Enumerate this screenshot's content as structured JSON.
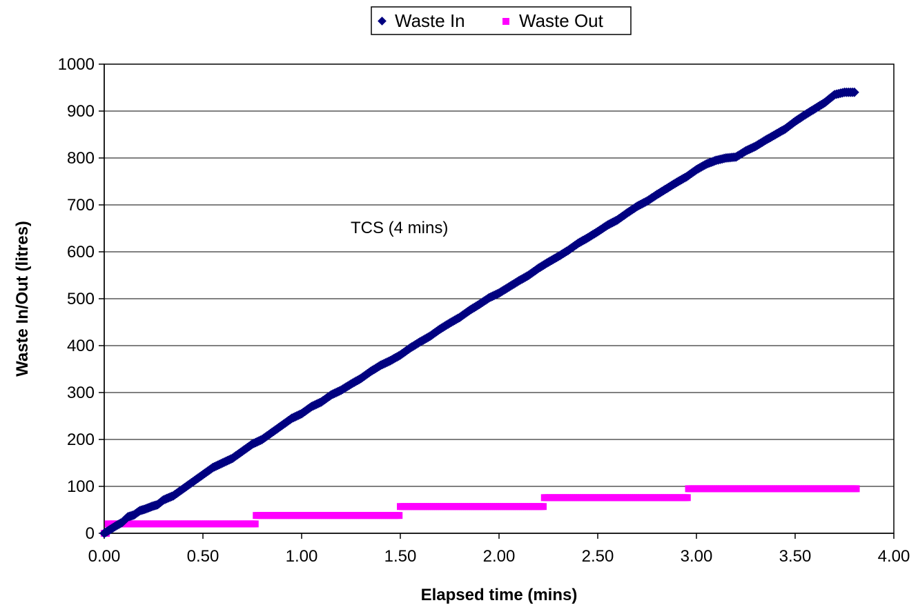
{
  "chart_data": {
    "type": "scatter",
    "title": "",
    "xlabel": "Elapsed time (mins)",
    "ylabel": "Waste In/Out (litres)",
    "xlim": [
      0,
      4
    ],
    "ylim": [
      0,
      1000
    ],
    "x_ticks": [
      "0.00",
      "0.50",
      "1.00",
      "1.50",
      "2.00",
      "2.50",
      "3.00",
      "3.50",
      "4.00"
    ],
    "y_ticks": [
      "0",
      "100",
      "200",
      "300",
      "400",
      "500",
      "600",
      "700",
      "800",
      "900",
      "1000"
    ],
    "grid": "horizontal",
    "legend_position": "top-center",
    "annotation": "TCS (4 mins)",
    "series": [
      {
        "name": "Waste In",
        "marker": "diamond",
        "color": "#000080",
        "points": [
          [
            0.0,
            0
          ],
          [
            0.03,
            8
          ],
          [
            0.06,
            16
          ],
          [
            0.09,
            23
          ],
          [
            0.12,
            35
          ],
          [
            0.15,
            39
          ],
          [
            0.18,
            48
          ],
          [
            0.21,
            52
          ],
          [
            0.24,
            57
          ],
          [
            0.27,
            61
          ],
          [
            0.3,
            71
          ],
          [
            0.35,
            80
          ],
          [
            0.4,
            95
          ],
          [
            0.45,
            110
          ],
          [
            0.5,
            125
          ],
          [
            0.55,
            140
          ],
          [
            0.6,
            150
          ],
          [
            0.65,
            160
          ],
          [
            0.7,
            175
          ],
          [
            0.75,
            190
          ],
          [
            0.8,
            200
          ],
          [
            0.85,
            215
          ],
          [
            0.9,
            230
          ],
          [
            0.95,
            245
          ],
          [
            1.0,
            255
          ],
          [
            1.05,
            270
          ],
          [
            1.1,
            280
          ],
          [
            1.15,
            295
          ],
          [
            1.2,
            305
          ],
          [
            1.25,
            318
          ],
          [
            1.3,
            330
          ],
          [
            1.35,
            345
          ],
          [
            1.4,
            358
          ],
          [
            1.45,
            368
          ],
          [
            1.5,
            380
          ],
          [
            1.55,
            395
          ],
          [
            1.6,
            408
          ],
          [
            1.65,
            420
          ],
          [
            1.7,
            435
          ],
          [
            1.75,
            448
          ],
          [
            1.8,
            460
          ],
          [
            1.85,
            475
          ],
          [
            1.9,
            488
          ],
          [
            1.95,
            502
          ],
          [
            2.0,
            512
          ],
          [
            2.05,
            525
          ],
          [
            2.1,
            538
          ],
          [
            2.15,
            550
          ],
          [
            2.2,
            565
          ],
          [
            2.25,
            578
          ],
          [
            2.3,
            590
          ],
          [
            2.35,
            603
          ],
          [
            2.4,
            618
          ],
          [
            2.45,
            630
          ],
          [
            2.5,
            643
          ],
          [
            2.55,
            657
          ],
          [
            2.6,
            668
          ],
          [
            2.65,
            683
          ],
          [
            2.7,
            697
          ],
          [
            2.75,
            708
          ],
          [
            2.8,
            722
          ],
          [
            2.85,
            735
          ],
          [
            2.9,
            748
          ],
          [
            2.95,
            760
          ],
          [
            3.0,
            775
          ],
          [
            3.05,
            787
          ],
          [
            3.1,
            795
          ],
          [
            3.15,
            800
          ],
          [
            3.2,
            802
          ],
          [
            3.25,
            815
          ],
          [
            3.3,
            825
          ],
          [
            3.35,
            838
          ],
          [
            3.4,
            850
          ],
          [
            3.45,
            862
          ],
          [
            3.5,
            878
          ],
          [
            3.55,
            892
          ],
          [
            3.6,
            905
          ],
          [
            3.65,
            918
          ],
          [
            3.7,
            935
          ],
          [
            3.75,
            940
          ],
          [
            3.8,
            940
          ]
        ]
      },
      {
        "name": "Waste Out",
        "marker": "square",
        "color": "#ff00ff",
        "steps": [
          {
            "x0": 0.0,
            "x1": 0.02,
            "y": 0
          },
          {
            "x0": 0.02,
            "x1": 0.77,
            "y": 20
          },
          {
            "x0": 0.77,
            "x1": 1.5,
            "y": 38
          },
          {
            "x0": 1.5,
            "x1": 2.23,
            "y": 57
          },
          {
            "x0": 2.23,
            "x1": 2.96,
            "y": 76
          },
          {
            "x0": 2.96,
            "x1": 3.82,
            "y": 95
          }
        ]
      }
    ]
  }
}
